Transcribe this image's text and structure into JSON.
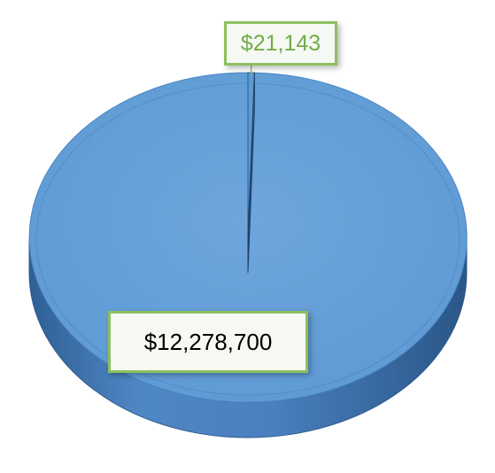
{
  "chart_data": {
    "type": "pie",
    "style": "3d",
    "slices": [
      {
        "label": "$12,278,700",
        "value": 12278700,
        "color": "#5b9bd5",
        "label_color": "#000000"
      },
      {
        "label": "$21,143",
        "value": 21143,
        "color": "#5b9bd5",
        "label_color": "#70ad47"
      }
    ],
    "label_border_color": "#8dc060",
    "legend": "none"
  }
}
